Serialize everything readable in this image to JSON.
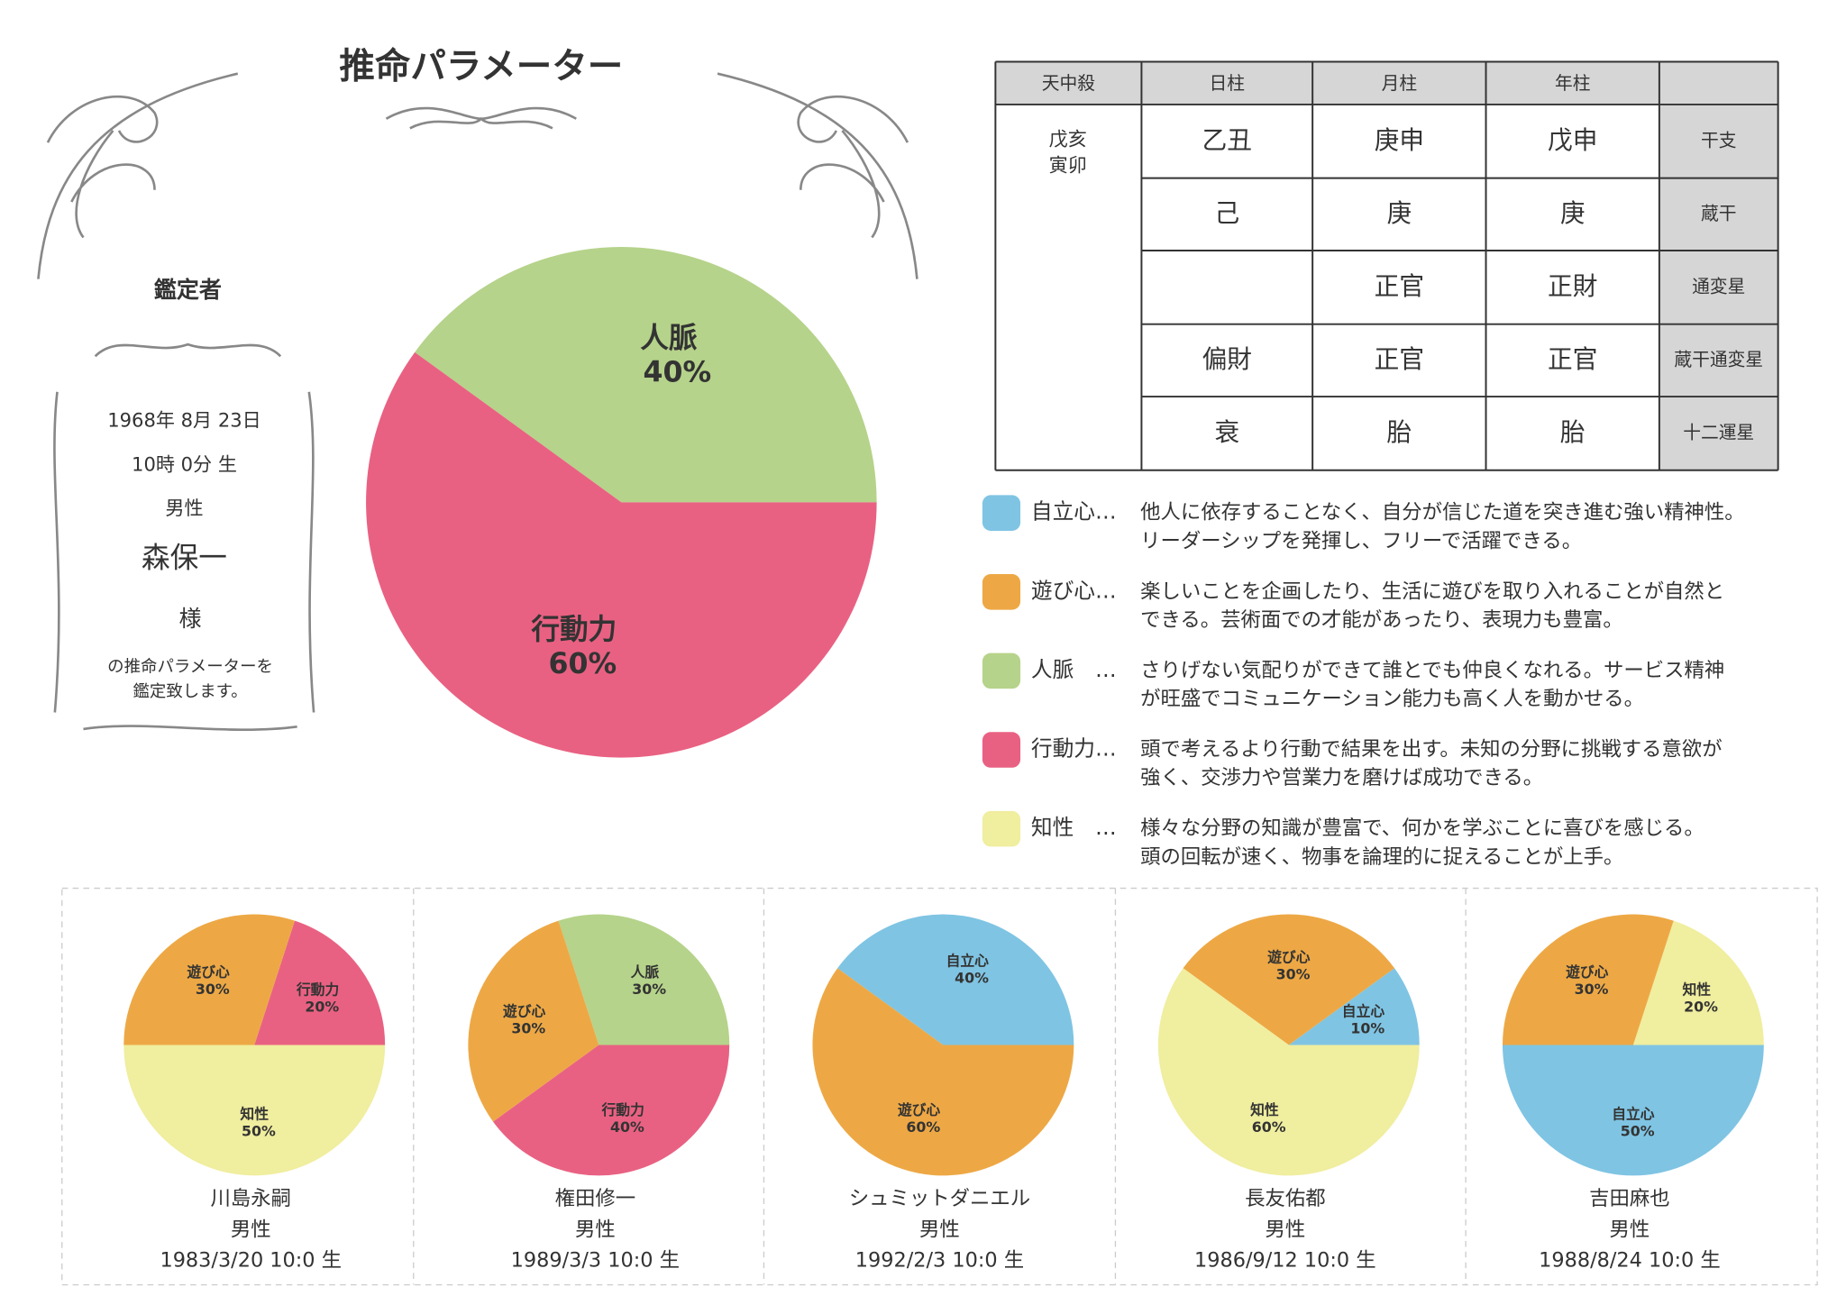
{
  "header": {
    "title": "推命パラメーター"
  },
  "appraiser": {
    "heading": "鑑定者",
    "date": "1968年 8月 23日",
    "time": "10時 0分 生",
    "gender": "男性",
    "name": "森保一",
    "honorific": "様",
    "note": [
      "の推命パラメーターを",
      "鑑定致します。"
    ]
  },
  "table": {
    "header": [
      "天中殺",
      "日柱",
      "月柱",
      "年柱"
    ],
    "tenchusatsu": [
      "戊亥",
      "寅卯"
    ],
    "rows": [
      [
        "乙丑",
        "庚申",
        "戊申",
        "干支"
      ],
      [
        "己",
        "庚",
        "庚",
        "蔵干"
      ],
      [
        null,
        "正官",
        "正財",
        "通変星"
      ],
      [
        "偏財",
        "正官",
        "正官",
        "蔵干通変星"
      ],
      [
        "衰",
        "胎",
        "胎",
        "十二運星"
      ]
    ]
  },
  "legend": [
    {
      "label": "自立心…",
      "color": "#7fc4e3",
      "text": [
        "他人に依存することなく、自分が信じた道を突き進む強い精神性。",
        "リーダーシップを発揮し、フリーで活躍できる。"
      ]
    },
    {
      "label": "遊び心…",
      "color": "#eda845",
      "text": [
        "楽しいことを企画したり、生活に遊びを取り入れることが自然と",
        "できる。芸術面での才能があったり、表現力も豊富。"
      ]
    },
    {
      "label": "人脈　…",
      "color": "#b5d38a",
      "text": [
        "さりげない気配りができて誰とでも仲良くなれる。サービス精神",
        "が旺盛でコミュニケーション能力も高く人を動かせる。"
      ]
    },
    {
      "label": "行動力…",
      "color": "#e96182",
      "text": [
        "頭で考えるより行動で結果を出す。未知の分野に挑戦する意欲が",
        "強く、交渉力や営業力を磨けば成功できる。"
      ]
    },
    {
      "label": "知性　…",
      "color": "#f0ee9f",
      "text": [
        "様々な分野の知識が豊富で、何かを学ぶことに喜びを感じる。",
        "頭の回転が速く、物事を論理的に捉えることが上手。"
      ]
    }
  ],
  "chart_data": [
    {
      "type": "pie",
      "categories": [
        "人脈",
        "行動力"
      ],
      "values": [
        40,
        60
      ],
      "value_labels": [
        "40%",
        "60%"
      ],
      "colors": [
        "#b5d38a",
        "#e96182"
      ]
    },
    {
      "type": "pie",
      "categories": [
        "行動力",
        "遊び心",
        "知性"
      ],
      "values": [
        20,
        30,
        50
      ],
      "value_labels": [
        "20%",
        "30%",
        "50%"
      ],
      "colors": [
        "#e96182",
        "#eda845",
        "#f0ee9f"
      ]
    },
    {
      "type": "pie",
      "categories": [
        "人脈",
        "遊び心",
        "行動力"
      ],
      "values": [
        30,
        30,
        40
      ],
      "value_labels": [
        "30%",
        "30%",
        "40%"
      ],
      "colors": [
        "#b5d38a",
        "#eda845",
        "#e96182"
      ]
    },
    {
      "type": "pie",
      "categories": [
        "自立心",
        "遊び心"
      ],
      "values": [
        40,
        60
      ],
      "value_labels": [
        "40%",
        "60%"
      ],
      "colors": [
        "#7fc4e3",
        "#eda845"
      ]
    },
    {
      "type": "pie",
      "categories": [
        "自立心",
        "遊び心",
        "知性"
      ],
      "values": [
        10,
        30,
        60
      ],
      "value_labels": [
        "10%",
        "30%",
        "60%"
      ],
      "colors": [
        "#7fc4e3",
        "#eda845",
        "#f0ee9f"
      ]
    },
    {
      "type": "pie",
      "categories": [
        "知性",
        "遊び心",
        "自立心"
      ],
      "values": [
        20,
        30,
        50
      ],
      "value_labels": [
        "20%",
        "30%",
        "50%"
      ],
      "colors": [
        "#f0ee9f",
        "#eda845",
        "#7fc4e3"
      ]
    }
  ],
  "persons": [
    {
      "name": "川島永嗣",
      "gender": "男性",
      "birth": "1983/3/20 10:0 生"
    },
    {
      "name": "権田修一",
      "gender": "男性",
      "birth": "1989/3/3 10:0 生"
    },
    {
      "name": "シュミットダニエル",
      "gender": "男性",
      "birth": "1992/2/3 10:0 生"
    },
    {
      "name": "長友佑都",
      "gender": "男性",
      "birth": "1986/9/12 10:0 生"
    },
    {
      "name": "吉田麻也",
      "gender": "男性",
      "birth": "1988/8/24 10:0 生"
    }
  ]
}
